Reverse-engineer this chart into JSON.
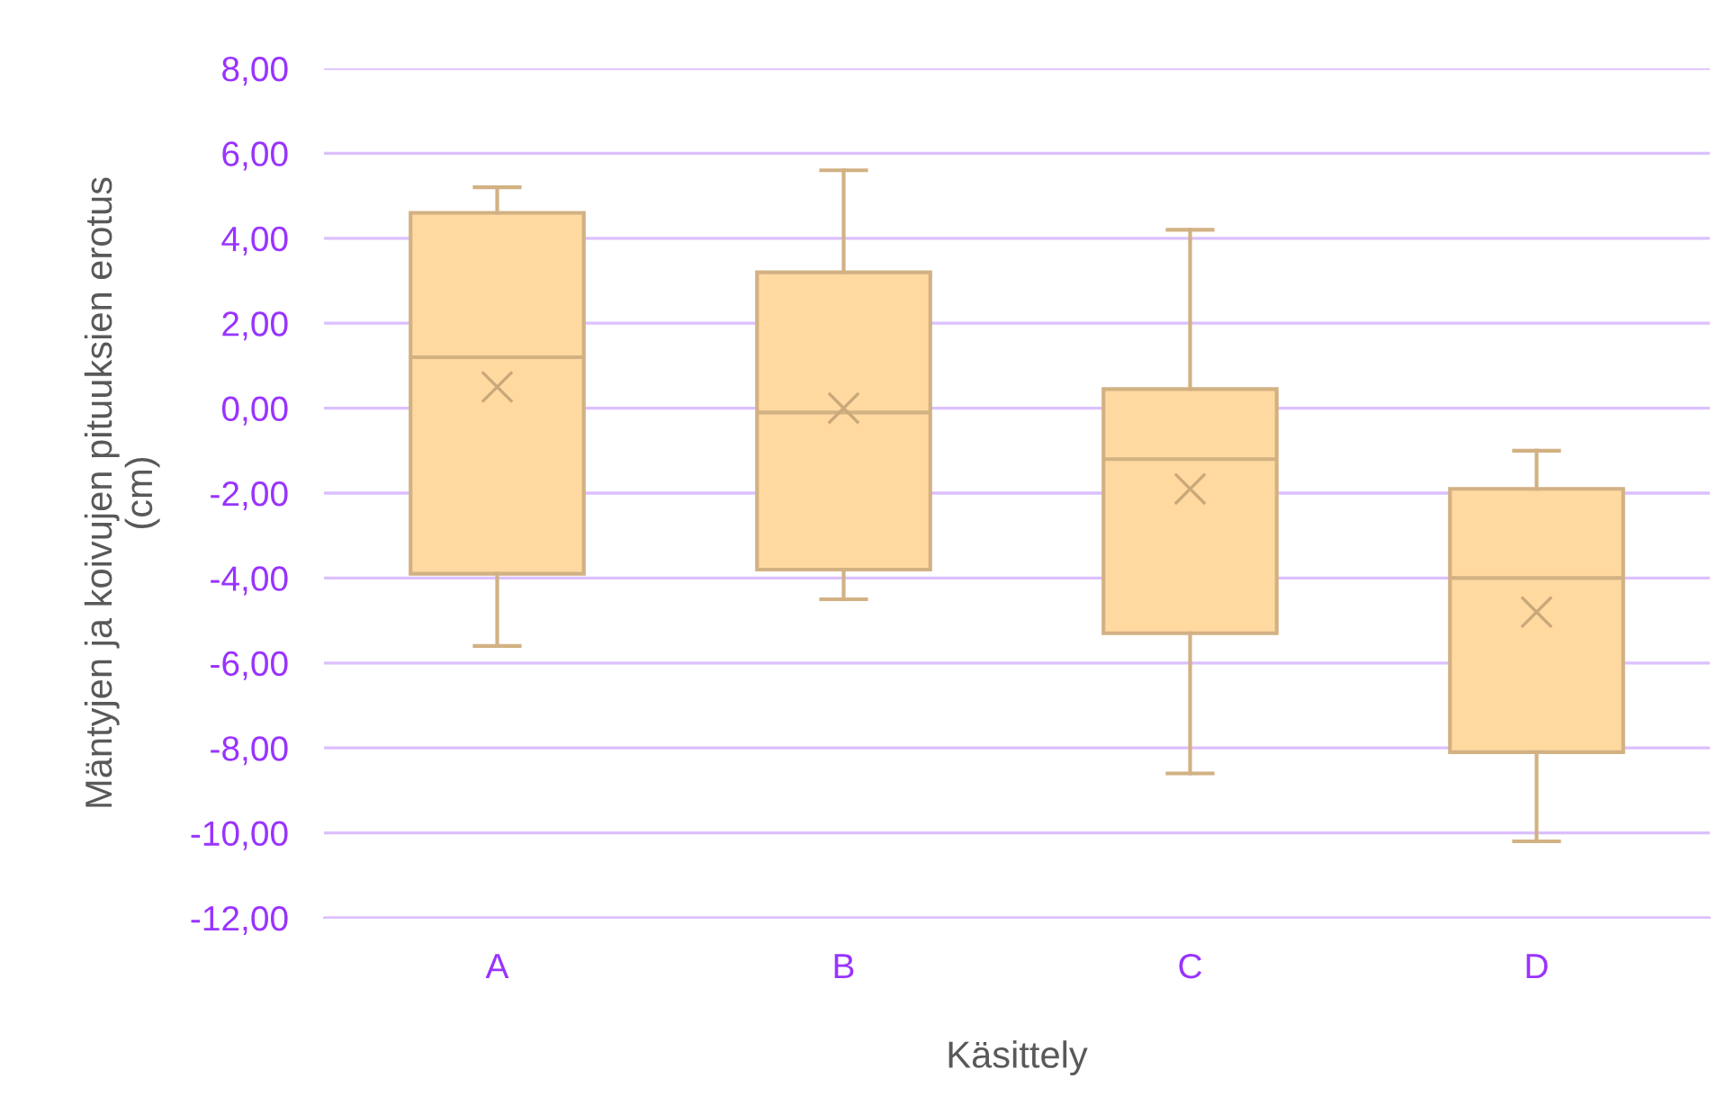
{
  "chart_data": {
    "type": "box",
    "xlabel": "Käsittely",
    "ylabel": "Mäntyjen ja koivujen pituuksien erotus\n(cm)",
    "categories": [
      "A",
      "B",
      "C",
      "D"
    ],
    "boxes": [
      {
        "low": -5.6,
        "q1": -3.9,
        "median": 1.2,
        "q3": 4.6,
        "high": 5.2,
        "mean": 0.5
      },
      {
        "low": -4.5,
        "q1": -3.8,
        "median": -0.1,
        "q3": 3.2,
        "high": 5.6,
        "mean": 0.0
      },
      {
        "low": -8.6,
        "q1": -5.3,
        "median": -1.2,
        "q3": 0.45,
        "high": 4.2,
        "mean": -1.9
      },
      {
        "low": -10.2,
        "q1": -8.1,
        "median": -4.0,
        "q3": -1.9,
        "high": -1.0,
        "mean": -4.8
      }
    ],
    "color": "#ffd9a0",
    "ylim": [
      -12,
      8
    ],
    "yticks": [
      {
        "value": -12,
        "label": "-12,00"
      },
      {
        "value": -10,
        "label": "-10,00"
      },
      {
        "value": -8,
        "label": "-8,00"
      },
      {
        "value": -6,
        "label": "-6,00"
      },
      {
        "value": -4,
        "label": "-4,00"
      },
      {
        "value": -2,
        "label": "-2,00"
      },
      {
        "value": 0,
        "label": "0,00"
      },
      {
        "value": 2,
        "label": "2,00"
      },
      {
        "value": 4,
        "label": "4,00"
      },
      {
        "value": 6,
        "label": "6,00"
      },
      {
        "value": 8,
        "label": "8,00"
      }
    ],
    "grid": "y",
    "marker": "cross"
  }
}
